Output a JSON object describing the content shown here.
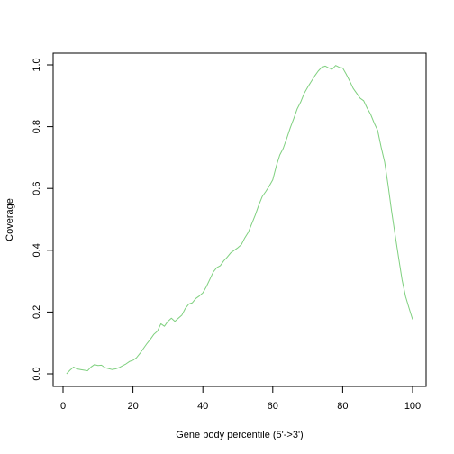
{
  "chart_data": {
    "type": "line",
    "title": "",
    "xlabel": "Gene body percentile (5'->3')",
    "ylabel": "Coverage",
    "xlim": [
      0,
      100
    ],
    "ylim": [
      0,
      1
    ],
    "xticks": [
      0,
      20,
      40,
      60,
      80,
      100
    ],
    "yticks": [
      0.0,
      0.2,
      0.4,
      0.6,
      0.8,
      1.0
    ],
    "xtick_labels": [
      "0",
      "20",
      "40",
      "60",
      "80",
      "100"
    ],
    "ytick_labels": [
      "0.0",
      "0.2",
      "0.4",
      "0.6",
      "0.8",
      "1.0"
    ],
    "grid": false,
    "legend": "none",
    "line_color": "#7fd07f",
    "series": [
      {
        "x": [
          1,
          2,
          3,
          4,
          5,
          6,
          7,
          8,
          9,
          10,
          11,
          12,
          13,
          14,
          15,
          16,
          17,
          18,
          19,
          20,
          21,
          22,
          23,
          24,
          25,
          26,
          27,
          28,
          29,
          30,
          31,
          32,
          33,
          34,
          35,
          36,
          37,
          38,
          39,
          40,
          41,
          42,
          43,
          44,
          45,
          46,
          47,
          48,
          49,
          50,
          51,
          52,
          53,
          54,
          55,
          56,
          57,
          58,
          59,
          60,
          61,
          62,
          63,
          64,
          65,
          66,
          67,
          68,
          69,
          70,
          71,
          72,
          73,
          74,
          75,
          76,
          77,
          78,
          79,
          80,
          81,
          82,
          83,
          84,
          85,
          86,
          87,
          88,
          89,
          90,
          91,
          92,
          93,
          94,
          95,
          96,
          97,
          98,
          99,
          100
        ],
        "values": [
          0.0,
          0.012,
          0.022,
          0.016,
          0.014,
          0.012,
          0.01,
          0.022,
          0.03,
          0.027,
          0.028,
          0.02,
          0.017,
          0.014,
          0.016,
          0.02,
          0.026,
          0.032,
          0.04,
          0.044,
          0.052,
          0.066,
          0.082,
          0.098,
          0.112,
          0.128,
          0.138,
          0.162,
          0.154,
          0.17,
          0.18,
          0.17,
          0.18,
          0.19,
          0.212,
          0.226,
          0.23,
          0.244,
          0.252,
          0.262,
          0.282,
          0.306,
          0.33,
          0.344,
          0.35,
          0.366,
          0.378,
          0.392,
          0.4,
          0.408,
          0.418,
          0.44,
          0.458,
          0.486,
          0.514,
          0.546,
          0.574,
          0.59,
          0.608,
          0.628,
          0.672,
          0.708,
          0.73,
          0.762,
          0.796,
          0.826,
          0.858,
          0.88,
          0.908,
          0.928,
          0.946,
          0.964,
          0.98,
          0.992,
          0.996,
          0.99,
          0.986,
          0.998,
          0.992,
          0.99,
          0.97,
          0.948,
          0.924,
          0.908,
          0.892,
          0.884,
          0.86,
          0.84,
          0.812,
          0.788,
          0.734,
          0.686,
          0.61,
          0.526,
          0.45,
          0.376,
          0.304,
          0.25,
          0.212,
          0.176
        ]
      }
    ]
  }
}
